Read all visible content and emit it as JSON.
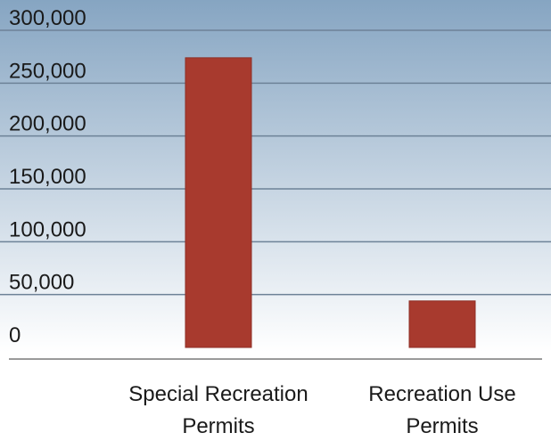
{
  "chart_data": {
    "type": "bar",
    "categories": [
      "Special Recreation Permits",
      "Recreation Use Permits"
    ],
    "category_lines": [
      [
        "Special Recreation",
        "Permits"
      ],
      [
        "Recreation Use",
        "Permits"
      ]
    ],
    "values": [
      274000,
      44000
    ],
    "title": "",
    "xlabel": "",
    "ylabel": "",
    "ylim": [
      0,
      300000
    ],
    "yticks": [
      0,
      50000,
      100000,
      150000,
      200000,
      250000,
      300000
    ],
    "ytick_labels": [
      "0",
      "50,000",
      "100,000",
      "150,000",
      "200,000",
      "250,000",
      "300,000"
    ],
    "grid": true,
    "legend": "none",
    "colors": {
      "bar": "#a83a2e",
      "bar_stroke": "#8e2f25",
      "bg_top": "#86a5c2",
      "bg_bottom": "#ffffff",
      "gridline": "#6d8297",
      "baseline": "#9a9a9a"
    }
  }
}
